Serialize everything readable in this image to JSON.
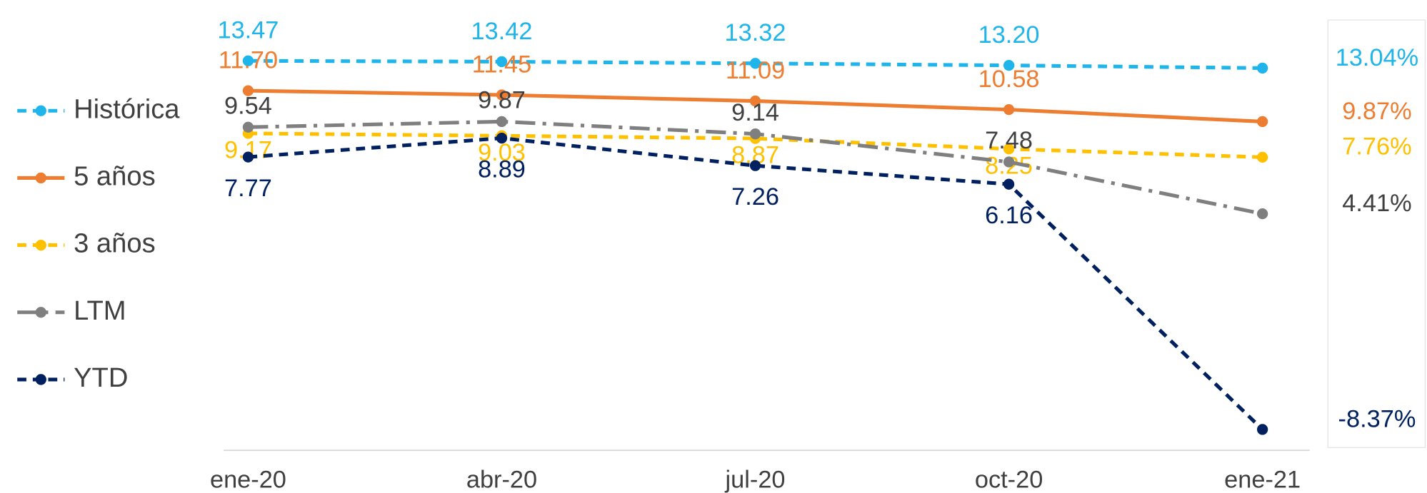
{
  "chart_data": {
    "type": "line",
    "categories": [
      "ene-20",
      "abr-20",
      "jul-20",
      "oct-20",
      "ene-21"
    ],
    "series": [
      {
        "name": "Histórica",
        "color": "#1fb5ea",
        "dash": "dashed",
        "values": [
          13.47,
          13.42,
          13.32,
          13.2,
          13.04
        ],
        "value_labels": [
          "13.47",
          "13.42",
          "13.32",
          "13.20",
          "13.04%"
        ]
      },
      {
        "name": "5 años",
        "color": "#ed7d31",
        "dash": "solid",
        "values": [
          11.7,
          11.45,
          11.09,
          10.58,
          9.87
        ],
        "value_labels": [
          "11.70",
          "11.45",
          "11.09",
          "10.58",
          "9.87%"
        ]
      },
      {
        "name": "3 años",
        "color": "#ffc000",
        "dash": "dashed",
        "values": [
          9.17,
          9.03,
          8.87,
          8.25,
          7.76
        ],
        "value_labels": [
          "9.17",
          "9.03",
          "8.87",
          "8.25",
          "7.76%"
        ]
      },
      {
        "name": "LTM",
        "color": "#7f7f7f",
        "dash": "dashdot",
        "values": [
          9.54,
          9.87,
          9.14,
          7.48,
          4.41
        ],
        "value_labels": [
          "9.54",
          "9.87",
          "9.14",
          "7.48",
          "4.41%"
        ]
      },
      {
        "name": "YTD",
        "color": "#002060",
        "dash": "dashed",
        "values": [
          7.77,
          8.89,
          7.26,
          6.16,
          -8.37
        ],
        "value_labels": [
          "7.77",
          "8.89",
          "7.26",
          "6.16",
          "-8.37%"
        ]
      }
    ],
    "legend": "left"
  }
}
